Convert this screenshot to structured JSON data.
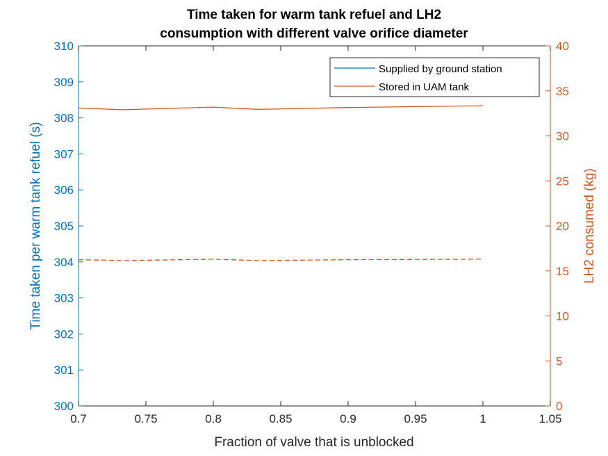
{
  "chart_data": {
    "type": "line",
    "title_lines": [
      "Time taken for warm tank refuel and LH2",
      "consumption with different valve orifice diameter"
    ],
    "xlabel": "Fraction of valve that is unblocked",
    "ylabel_left": "Time taken per warm tank refuel (s)",
    "ylabel_right": "LH2 consumed (kg)",
    "xlim": [
      0.7,
      1.05
    ],
    "ylim_left": [
      300,
      310
    ],
    "ylim_right": [
      0,
      40
    ],
    "x_ticks": [
      0.7,
      0.75,
      0.8,
      0.85,
      0.9,
      0.95,
      1.0,
      1.05
    ],
    "x_tick_labels": [
      "0.7",
      "0.75",
      "0.8",
      "0.85",
      "0.9",
      "0.95",
      "1",
      "1.05"
    ],
    "y_left_ticks": [
      300,
      301,
      302,
      303,
      304,
      305,
      306,
      307,
      308,
      309,
      310
    ],
    "y_left_tick_labels": [
      "300",
      "301",
      "302",
      "303",
      "304",
      "305",
      "306",
      "307",
      "308",
      "309",
      "310"
    ],
    "y_right_ticks": [
      0,
      5,
      10,
      15,
      20,
      25,
      30,
      35,
      40
    ],
    "y_right_tick_labels": [
      "0",
      "5",
      "10",
      "15",
      "20",
      "25",
      "30",
      "35",
      "40"
    ],
    "grid": false,
    "legend_position": "top-right",
    "colors": {
      "left_axis": "#0072BD",
      "right_axis": "#D95319",
      "axes": "#262626"
    },
    "legend": [
      {
        "label": "Supplied by ground station",
        "color": "#0072BD"
      },
      {
        "label": "Stored in UAM tank",
        "color": "#D95319"
      }
    ],
    "series": [
      {
        "axis": "right",
        "style": "solid",
        "color": "#D95319",
        "x": [
          0.7,
          0.733,
          0.8,
          0.833,
          0.9,
          1.0
        ],
        "values": [
          33.1,
          32.9,
          33.2,
          32.95,
          33.15,
          33.35
        ]
      },
      {
        "axis": "right",
        "style": "dashed",
        "color": "#D95319",
        "x": [
          0.7,
          0.733,
          0.8,
          0.833,
          0.9,
          1.0
        ],
        "values": [
          16.25,
          16.15,
          16.3,
          16.15,
          16.25,
          16.3
        ]
      }
    ]
  }
}
